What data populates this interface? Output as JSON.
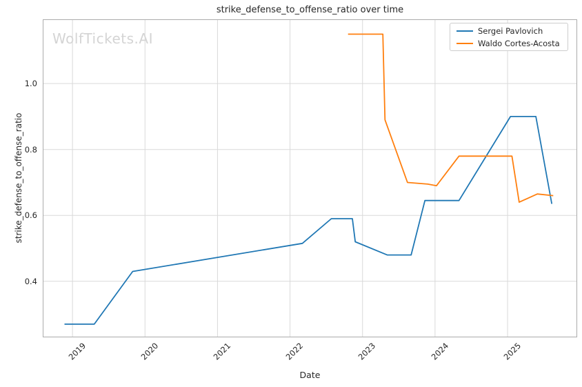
{
  "watermark": "WolfTickets.AI",
  "colors": {
    "grid": "#d9d9d9",
    "spine": "#ababab",
    "text": "#262626",
    "watermark": "#d4d4d4",
    "legend_border": "#cccccc",
    "series_blue": "#1f77b4",
    "series_orange": "#ff7f0e"
  },
  "chart_data": {
    "type": "line",
    "title": "strike_defense_to_offense_ratio over time",
    "xlabel": "Date",
    "ylabel": "strike_defense_to_offense_ratio",
    "x_unit": "decimal_year",
    "xlim": [
      2018.59,
      2025.96
    ],
    "ylim": [
      0.23,
      1.195
    ],
    "x_ticks": [
      2019,
      2020,
      2021,
      2022,
      2023,
      2024,
      2025
    ],
    "x_tick_labels": [
      "2019",
      "2020",
      "2021",
      "2022",
      "2023",
      "2024",
      "2025"
    ],
    "y_ticks": [
      0.4,
      0.6,
      0.8,
      1.0
    ],
    "y_tick_labels": [
      "0.4",
      "0.6",
      "0.8",
      "1.0"
    ],
    "grid": true,
    "legend_position": "upper right",
    "series": [
      {
        "name": "Sergei Pavlovich",
        "color": "#1f77b4",
        "x": [
          2018.89,
          2019.3,
          2019.83,
          2022.17,
          2022.57,
          2022.86,
          2022.9,
          2023.34,
          2023.67,
          2023.86,
          2024.33,
          2025.04,
          2025.39,
          2025.61
        ],
        "y": [
          0.27,
          0.27,
          0.43,
          0.515,
          0.59,
          0.59,
          0.52,
          0.48,
          0.48,
          0.645,
          0.645,
          0.9,
          0.9,
          0.635
        ]
      },
      {
        "name": "Waldo Cortes-Acosta",
        "color": "#ff7f0e",
        "x": [
          2022.8,
          2023.28,
          2023.31,
          2023.62,
          2023.9,
          2024.02,
          2024.33,
          2025.06,
          2025.16,
          2025.41,
          2025.63
        ],
        "y": [
          1.15,
          1.15,
          0.89,
          0.7,
          0.695,
          0.69,
          0.78,
          0.78,
          0.64,
          0.665,
          0.66
        ]
      }
    ]
  }
}
